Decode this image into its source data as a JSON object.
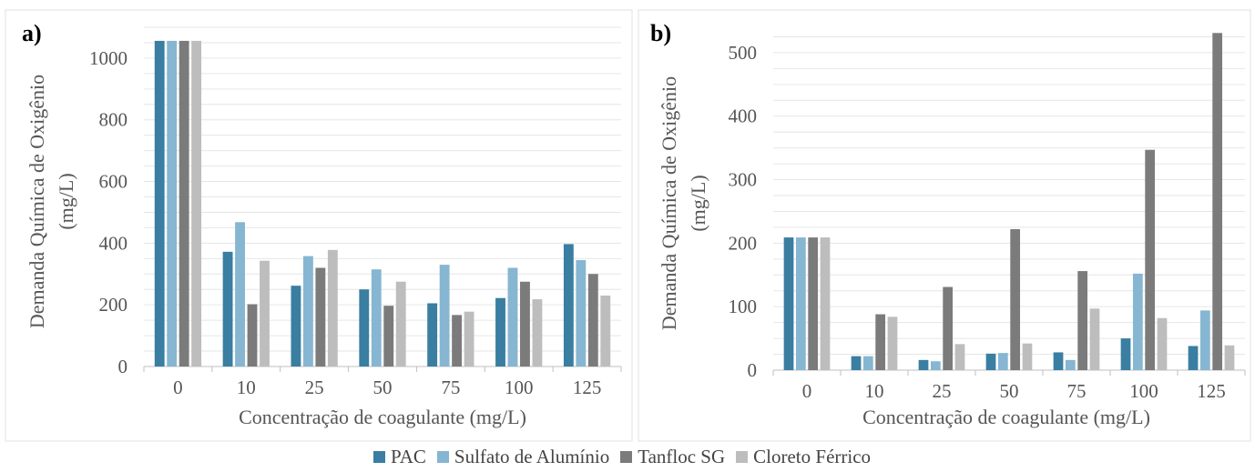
{
  "chart_data": [
    {
      "type": "bar",
      "panel_label": "a)",
      "categories": [
        "0",
        "10",
        "25",
        "50",
        "75",
        "100",
        "125"
      ],
      "xlabel": "Concentração de coagulante (mg/L)",
      "ylabel_lines": [
        "Demanda Química de Oxigênio",
        "(mg/L)"
      ],
      "ylim": [
        0,
        1100
      ],
      "yticks": [
        0,
        200,
        400,
        600,
        800,
        1000
      ],
      "grid": true,
      "series": [
        {
          "name": "PAC",
          "values": [
            1056,
            372,
            262,
            250,
            205,
            222,
            397
          ]
        },
        {
          "name": "Sulfato de Alumínio",
          "values": [
            1056,
            468,
            358,
            315,
            330,
            320,
            345
          ]
        },
        {
          "name": "Tanfloc SG",
          "values": [
            1056,
            202,
            320,
            197,
            167,
            275,
            300
          ]
        },
        {
          "name": "Cloreto Férrico",
          "values": [
            1056,
            343,
            378,
            275,
            178,
            218,
            230
          ]
        }
      ]
    },
    {
      "type": "bar",
      "panel_label": "b)",
      "categories": [
        "0",
        "10",
        "25",
        "50",
        "75",
        "100",
        "125"
      ],
      "xlabel": "Concentração de coagulante (mg/L)",
      "ylabel_lines": [
        "Demanda Química de Oxigênio",
        "(mg/L)"
      ],
      "ylim": [
        0,
        540
      ],
      "yticks": [
        0,
        100,
        200,
        300,
        400,
        500
      ],
      "grid": true,
      "series": [
        {
          "name": "PAC",
          "values": [
            209,
            22,
            16,
            26,
            28,
            50,
            38
          ]
        },
        {
          "name": "Sulfato de Alumínio",
          "values": [
            209,
            22,
            14,
            27,
            16,
            152,
            94
          ]
        },
        {
          "name": "Tanfloc SG",
          "values": [
            209,
            88,
            131,
            222,
            156,
            347,
            531
          ]
        },
        {
          "name": "Cloreto Férrico",
          "values": [
            209,
            84,
            41,
            42,
            97,
            82,
            39
          ]
        }
      ]
    }
  ],
  "legend": {
    "position": "bottom-center",
    "items": [
      {
        "label": "PAC",
        "color": "#3a7ea1"
      },
      {
        "label": "Sulfato de Alumínio",
        "color": "#86b6d1"
      },
      {
        "label": "Tanfloc SG",
        "color": "#7b7b7b"
      },
      {
        "label": "Cloreto Férrico",
        "color": "#bdbdbd"
      }
    ]
  }
}
